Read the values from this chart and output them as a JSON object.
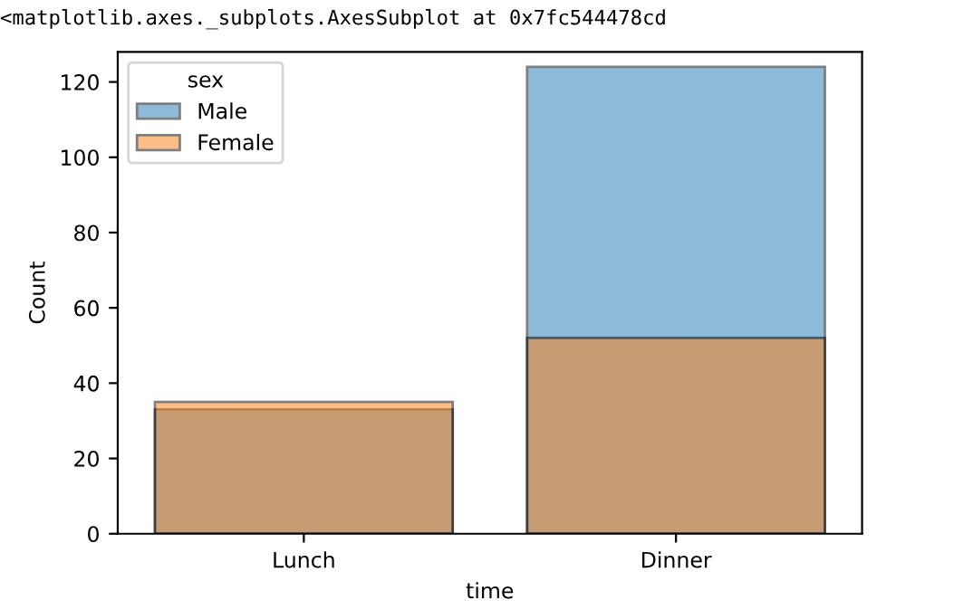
{
  "chart_data": {
    "type": "bar",
    "xlabel": "time",
    "ylabel": "Count",
    "legend_title": "sex",
    "categories": [
      "Lunch",
      "Dinner"
    ],
    "series": [
      {
        "name": "Male",
        "color": "#1f77b4",
        "values": [
          33,
          124
        ]
      },
      {
        "name": "Female",
        "color": "#ff7f0e",
        "values": [
          35,
          52
        ]
      }
    ],
    "ylim": [
      0,
      128
    ],
    "yticks": [
      0,
      20,
      40,
      60,
      80,
      100,
      120
    ],
    "legend": "top left",
    "grid": false,
    "annotations": [
      "<matplotlib.axes._subplots.AxesSubplot at 0x7fc544478cd"
    ]
  }
}
